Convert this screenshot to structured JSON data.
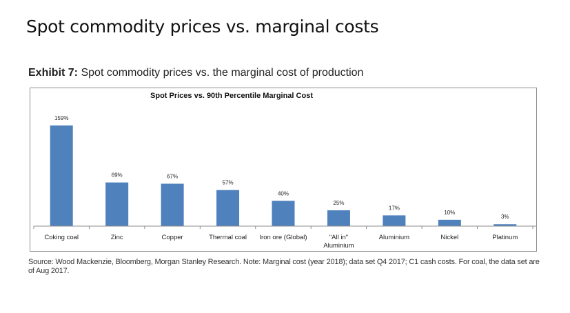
{
  "page": {
    "title": "Spot commodity prices vs. marginal costs"
  },
  "exhibit": {
    "label": "Exhibit 7:",
    "caption": "Spot commodity prices vs. the marginal cost of production"
  },
  "source_note": "Source: Wood Mackenzie, Bloomberg, Morgan Stanley Research. Note: Marginal cost (year 2018); data set Q4 2017; C1 cash costs. For coal, the data set are of Aug 2017.",
  "colors": {
    "bar": "#4f81bd",
    "axis": "#8c8c8c"
  },
  "chart_data": {
    "type": "bar",
    "title": "Spot Prices vs. 90th Percentile Marginal Cost",
    "xlabel": "",
    "ylabel": "",
    "categories": [
      "Coking coal",
      "Zinc",
      "Copper",
      "Thermal coal",
      "Iron ore (Global)",
      "\"All in\" Aluminium",
      "Aluminium",
      "Nickel",
      "Platinum"
    ],
    "category_lines": [
      [
        "Coking coal"
      ],
      [
        "Zinc"
      ],
      [
        "Copper"
      ],
      [
        "Thermal coal"
      ],
      [
        "Iron ore (Global)"
      ],
      [
        "\"All in\"",
        "Aluminium"
      ],
      [
        "Aluminium"
      ],
      [
        "Nickel"
      ],
      [
        "Platinum"
      ]
    ],
    "values": [
      159,
      69,
      67,
      57,
      40,
      25,
      17,
      10,
      3
    ],
    "data_labels": [
      "159%",
      "69%",
      "67%",
      "57%",
      "40%",
      "25%",
      "17%",
      "10%",
      "3%"
    ],
    "unit": "%",
    "ylim": [
      0,
      180
    ],
    "grid": false,
    "legend": "none"
  }
}
